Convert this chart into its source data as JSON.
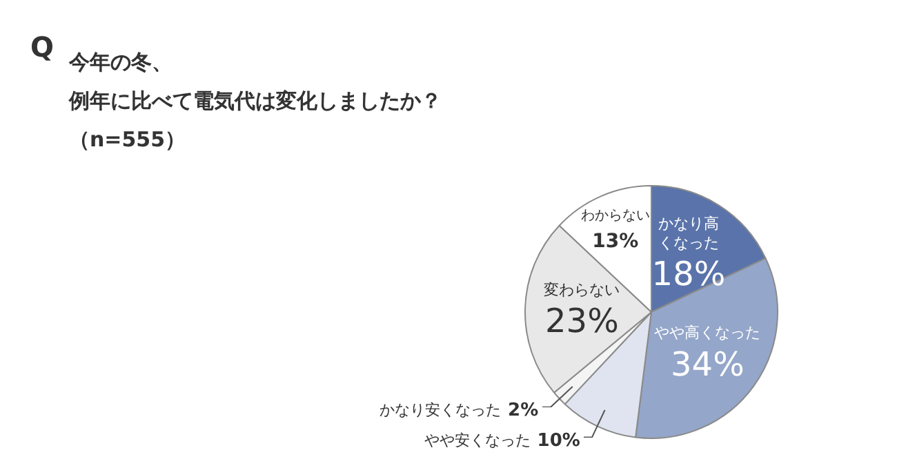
{
  "chart_data": {
    "type": "pie",
    "title": "今年の冬、",
    "subtitle": "例年に比べて電気代は変化しましたか？",
    "annotations": [
      "Q",
      "（n=555）"
    ],
    "categories": [
      "かなり高くなった",
      "やや高くなった",
      "やや安くなった",
      "かなり安くなった",
      "変わらない",
      "わからない"
    ],
    "values": [
      18,
      34,
      10,
      2,
      23,
      13
    ],
    "value_labels": [
      "18%",
      "34%",
      "10%",
      "2%",
      "23%",
      "13%"
    ],
    "colors": [
      "#5a74ab",
      "#94a6c9",
      "#dfe4f0",
      "#f4f4f4",
      "#e8e8e8",
      "#ffffff"
    ],
    "legend": false
  }
}
